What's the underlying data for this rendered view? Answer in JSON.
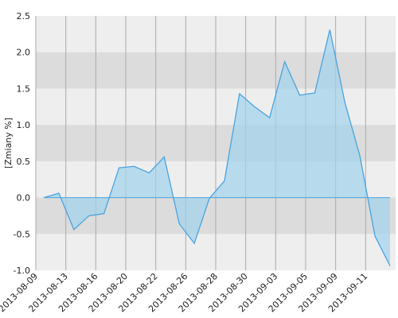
{
  "chart_data": {
    "type": "area",
    "y_label": "[Zmiany %]",
    "x_labels": [
      "2013-08-09",
      "2013-08-13",
      "2013-08-16",
      "2013-08-20",
      "2013-08-22",
      "2013-08-26",
      "2013-08-28",
      "2013-08-30",
      "2013-09-03",
      "2013-09-05",
      "2013-09-09",
      "2013-09-11"
    ],
    "values": [
      0.0,
      0.06,
      -0.44,
      -0.25,
      -0.22,
      0.41,
      0.43,
      0.34,
      0.56,
      -0.36,
      -0.63,
      -0.01,
      0.23,
      1.43,
      1.25,
      1.1,
      1.87,
      1.41,
      1.44,
      2.31,
      1.31,
      0.57,
      -0.53,
      -0.94
    ],
    "color": "#4aa3df",
    "ylim": [
      -1.0,
      2.5
    ],
    "yticks": [
      {
        "value": -1.0,
        "label": "-1.0"
      },
      {
        "value": -0.5,
        "label": "-0.5"
      },
      {
        "value": 0.0,
        "label": "0.0"
      },
      {
        "value": 0.5,
        "label": "0.5"
      },
      {
        "value": 1.0,
        "label": "1.0"
      },
      {
        "value": 1.5,
        "label": "1.5"
      },
      {
        "value": 2.0,
        "label": "2.0"
      },
      {
        "value": 2.5,
        "label": "2.5"
      }
    ]
  }
}
